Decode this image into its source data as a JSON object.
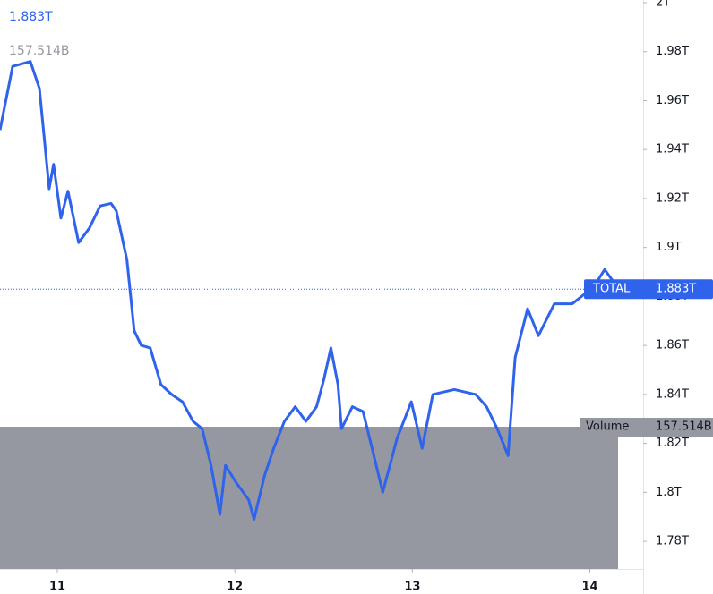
{
  "chart_data": {
    "type": "line",
    "header_value": "1.883T",
    "header_volume": "157.514B",
    "x": [
      10.677,
      10.748,
      10.848,
      10.899,
      10.954,
      10.979,
      11.02,
      11.06,
      11.12,
      11.181,
      11.241,
      11.302,
      11.332,
      11.392,
      11.433,
      11.473,
      11.523,
      11.584,
      11.644,
      11.705,
      11.765,
      11.816,
      11.866,
      11.916,
      11.947,
      12.007,
      12.078,
      12.108,
      12.168,
      12.219,
      12.279,
      12.34,
      12.4,
      12.46,
      12.501,
      12.541,
      12.581,
      12.601,
      12.662,
      12.722,
      12.773,
      12.833,
      12.914,
      12.994,
      13.055,
      13.115,
      13.236,
      13.357,
      13.418,
      13.478,
      13.539,
      13.579,
      13.649,
      13.71,
      13.8,
      13.901,
      14.022,
      14.083,
      14.133
    ],
    "series": [
      {
        "name": "TOTAL",
        "color": "#2f63ec",
        "values": [
          1.948,
          1.974,
          1.976,
          1.965,
          1.924,
          1.934,
          1.912,
          1.923,
          1.902,
          1.908,
          1.917,
          1.918,
          1.915,
          1.895,
          1.866,
          1.86,
          1.859,
          1.844,
          1.84,
          1.837,
          1.829,
          1.826,
          1.811,
          1.791,
          1.811,
          1.804,
          1.797,
          1.789,
          1.807,
          1.818,
          1.829,
          1.835,
          1.829,
          1.835,
          1.846,
          1.859,
          1.844,
          1.826,
          1.835,
          1.833,
          1.818,
          1.8,
          1.822,
          1.837,
          1.818,
          1.84,
          1.842,
          1.84,
          1.835,
          1.826,
          1.815,
          1.855,
          1.875,
          1.864,
          1.877,
          1.877,
          1.884,
          1.891,
          1.886
        ]
      }
    ],
    "price_line": {
      "name": "TOTAL",
      "value": 1.883,
      "label": "1.883T",
      "color": "#2f63ec"
    },
    "volume": {
      "name": "Volume",
      "value": 157.514,
      "label": "157.514B",
      "color": "#9598a1"
    },
    "xlim": [
      10.677,
      14.3
    ],
    "xticks": [
      11,
      12,
      13,
      14
    ],
    "ylim": [
      1.7687,
      2.0011
    ],
    "yticks": [
      {
        "value": 1.78,
        "label": "1.78T"
      },
      {
        "value": 1.8,
        "label": "1.8T"
      },
      {
        "value": 1.82,
        "label": "1.82T"
      },
      {
        "value": 1.84,
        "label": "1.84T"
      },
      {
        "value": 1.86,
        "label": "1.86T"
      },
      {
        "value": 1.88,
        "label": "1.88T"
      },
      {
        "value": 1.9,
        "label": "1.9T"
      },
      {
        "value": 1.92,
        "label": "1.92T"
      },
      {
        "value": 1.94,
        "label": "1.94T"
      },
      {
        "value": 1.96,
        "label": "1.96T"
      },
      {
        "value": 1.98,
        "label": "1.98T"
      },
      {
        "value": 2,
        "label": "2T"
      }
    ]
  }
}
